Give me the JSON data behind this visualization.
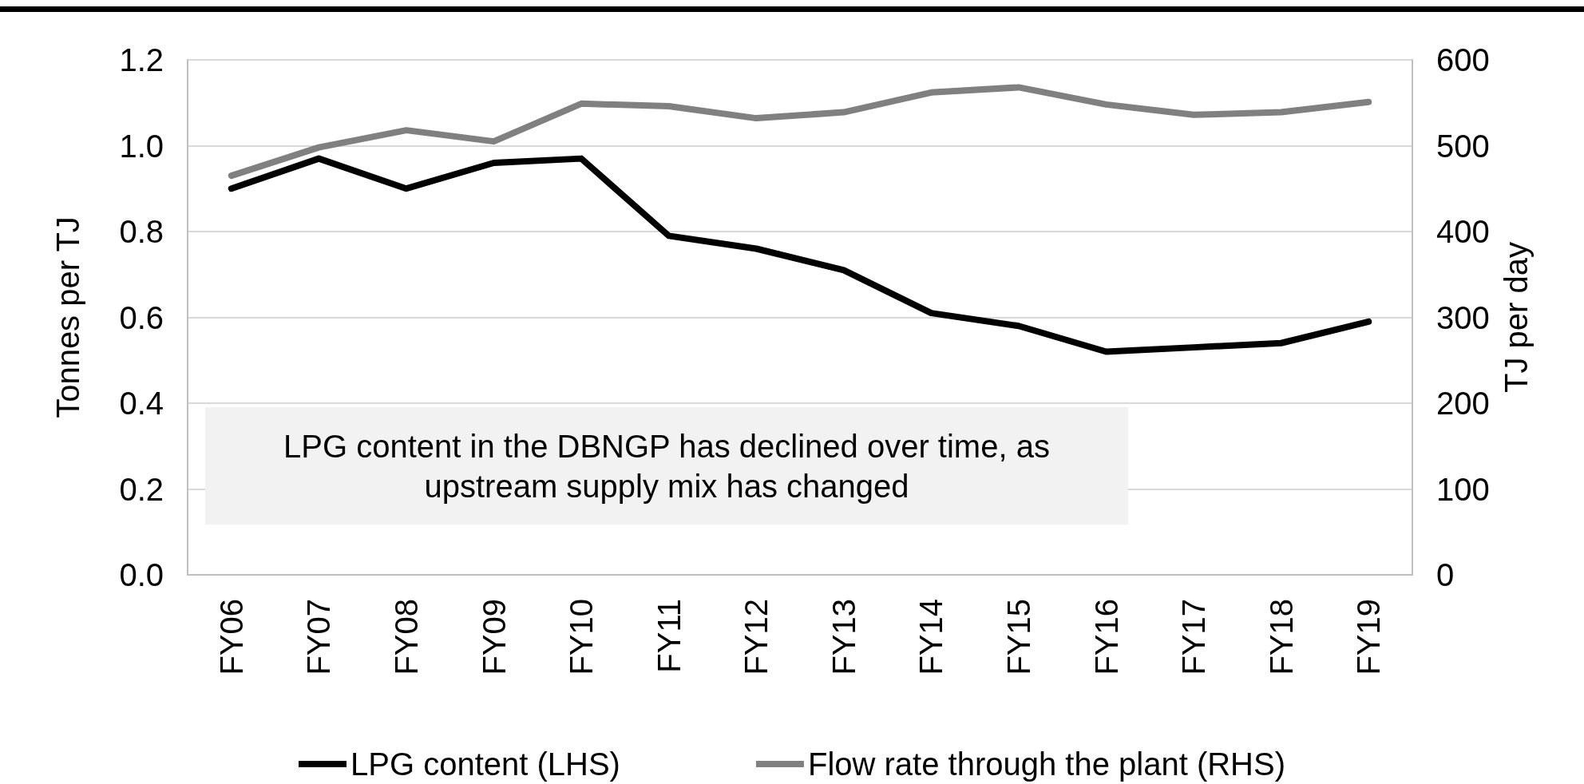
{
  "chart_data": {
    "type": "line",
    "categories": [
      "FY06",
      "FY07",
      "FY08",
      "FY09",
      "FY10",
      "FY11",
      "FY12",
      "FY13",
      "FY14",
      "FY15",
      "FY16",
      "FY17",
      "FY18",
      "FY19"
    ],
    "series": [
      {
        "name": "LPG content (LHS)",
        "color": "#000000",
        "values": [
          0.9,
          0.97,
          0.9,
          0.96,
          0.97,
          0.79,
          0.76,
          0.71,
          0.61,
          0.58,
          0.52,
          0.53,
          0.54,
          0.59
        ]
      },
      {
        "name": "Flow rate through the plant (RHS)",
        "color": "#808080",
        "axis": "y2",
        "values": [
          465,
          498,
          518,
          505,
          549,
          546,
          532,
          539,
          562,
          568,
          548,
          536,
          539,
          551
        ]
      }
    ],
    "ylabel": "Tonnes per TJ",
    "y2label": "TJ per day",
    "ylim": [
      0,
      1.2
    ],
    "yticks": [
      {
        "value": 0,
        "label": "0.0"
      },
      {
        "value": 0.2,
        "label": "0.2"
      },
      {
        "value": 0.4,
        "label": "0.4"
      },
      {
        "value": 0.6,
        "label": "0.6"
      },
      {
        "value": 0.8,
        "label": "0.8"
      },
      {
        "value": 1,
        "label": "1.0"
      },
      {
        "value": 1.2,
        "label": "1.2"
      }
    ],
    "y2lim": [
      0,
      600
    ],
    "y2ticks": [
      0,
      100,
      200,
      300,
      400,
      500,
      600
    ],
    "grid": "y",
    "legend": "bottom",
    "line_style": "solid",
    "annotations": [
      "LPG content in the DBNGP has declined over time, as upstream supply mix has changed"
    ]
  }
}
